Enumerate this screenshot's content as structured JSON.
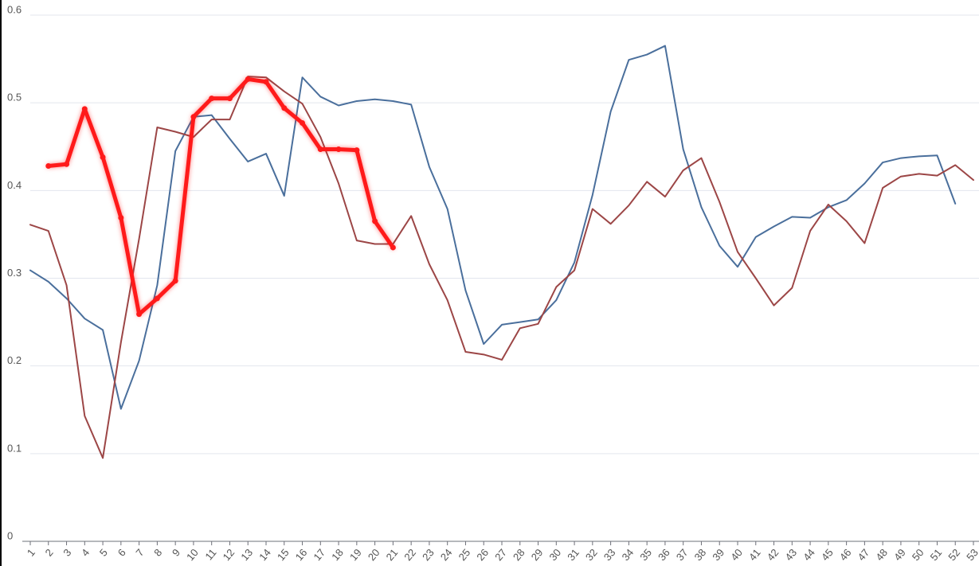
{
  "chart_data": {
    "type": "line",
    "categories": [
      "1",
      "2",
      "3",
      "4",
      "5",
      "6",
      "7",
      "8",
      "9",
      "10",
      "11",
      "12",
      "13",
      "14",
      "15",
      "16",
      "17",
      "18",
      "19",
      "20",
      "21",
      "22",
      "23",
      "24",
      "25",
      "26",
      "27",
      "28",
      "29",
      "30",
      "31",
      "32",
      "33",
      "34",
      "35",
      "36",
      "37",
      "38",
      "39",
      "40",
      "41",
      "42",
      "43",
      "44",
      "45",
      "46",
      "47",
      "48",
      "49",
      "50",
      "51",
      "52",
      "53"
    ],
    "ylim": [
      0,
      0.6
    ],
    "yticks": [
      0,
      0.1,
      0.2,
      0.3,
      0.4,
      0.5,
      0.6
    ],
    "grid": true,
    "series": [
      {
        "color": "#4a6f9c",
        "width": 2,
        "markers": false,
        "values": [
          0.309,
          0.296,
          0.277,
          0.254,
          0.241,
          0.151,
          0.206,
          0.292,
          0.445,
          0.484,
          0.486,
          0.459,
          0.433,
          0.442,
          0.394,
          0.529,
          0.507,
          0.497,
          0.502,
          0.504,
          0.502,
          0.498,
          0.427,
          0.379,
          0.286,
          0.225,
          0.247,
          0.25,
          0.253,
          0.275,
          0.318,
          0.395,
          0.49,
          0.549,
          0.555,
          0.565,
          0.447,
          0.381,
          0.337,
          0.313,
          0.347,
          0.359,
          0.37,
          0.369,
          0.381,
          0.389,
          0.408,
          0.432,
          0.437,
          0.439,
          0.44,
          0.385,
          null
        ]
      },
      {
        "color": "#9c4646",
        "width": 2,
        "markers": false,
        "values": [
          0.361,
          0.354,
          0.292,
          0.143,
          0.095,
          0.227,
          0.345,
          0.472,
          0.467,
          0.461,
          0.481,
          0.481,
          0.53,
          0.529,
          0.513,
          0.499,
          0.461,
          0.408,
          0.343,
          0.339,
          0.339,
          0.371,
          0.316,
          0.275,
          0.216,
          0.213,
          0.207,
          0.243,
          0.248,
          0.29,
          0.309,
          0.379,
          0.362,
          0.383,
          0.41,
          0.393,
          0.423,
          0.437,
          0.387,
          0.33,
          0.3,
          0.269,
          0.289,
          0.354,
          0.384,
          0.365,
          0.34,
          0.403,
          0.416,
          0.419,
          0.417,
          0.429,
          0.412
        ]
      },
      {
        "color": "#ff1a1a",
        "width": 5,
        "markers": true,
        "values": [
          null,
          0.428,
          0.43,
          0.493,
          0.438,
          0.369,
          0.259,
          0.277,
          0.297,
          0.484,
          0.505,
          0.505,
          0.527,
          0.524,
          0.494,
          0.477,
          0.447,
          0.447,
          0.446,
          0.365,
          0.335,
          null,
          null,
          null,
          null,
          null,
          null,
          null,
          null,
          null,
          null,
          null,
          null,
          null,
          null,
          null,
          null,
          null,
          null,
          null,
          null,
          null,
          null,
          null,
          null,
          null,
          null,
          null,
          null,
          null,
          null,
          null,
          null
        ]
      }
    ]
  }
}
